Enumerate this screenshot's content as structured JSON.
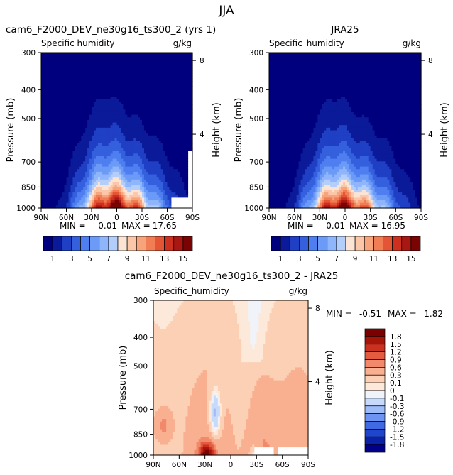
{
  "figure_title": "JJA",
  "colors": {
    "abs_scale": [
      "#00007f",
      "#0a1a99",
      "#1f3fc4",
      "#3560dd",
      "#4e7ef0",
      "#6b9af7",
      "#8fb5fb",
      "#b4cefc",
      "#fce4d4",
      "#fbc7a8",
      "#f7a37c",
      "#f17d55",
      "#e45535",
      "#ce3020",
      "#a81712",
      "#7a0404"
    ],
    "diff_scale": [
      "#00008b",
      "#0a22a6",
      "#1f45cc",
      "#3f6ae4",
      "#6d94f2",
      "#9dbcf8",
      "#c7daf9",
      "#f0f4fa",
      "#fde9da",
      "#fcd0b5",
      "#f8b090",
      "#f1896a",
      "#e45b3f",
      "#cc3020",
      "#a71508",
      "#7b0000"
    ]
  },
  "chart_data": [
    {
      "type": "contour",
      "title": "cam6_F2000_DEV_ne30g16_ts300_2 (yrs 1)",
      "variable": "Specific humidity",
      "units": "g/kg",
      "ylabel": "Pressure (mb)",
      "ylabel_right": "Height (km)",
      "x_ticks": [
        "90N",
        "60N",
        "30N",
        "0",
        "30S",
        "60S",
        "90S"
      ],
      "y_ticks": [
        "300",
        "400",
        "500",
        "700",
        "850",
        "1000"
      ],
      "y_ticks_right": [
        "8",
        "4"
      ],
      "ylim": [
        1000,
        300
      ],
      "x_range": [
        90,
        -90
      ],
      "stats": {
        "min_label": "MIN =",
        "min": "0.01",
        "max_label": "MAX =",
        "max": "17.65"
      },
      "peak": {
        "lat": 5,
        "value": 17.65
      },
      "colorbar_labels": [
        "1",
        "3",
        "5",
        "7",
        "9",
        "11",
        "13",
        "15"
      ]
    },
    {
      "type": "contour",
      "title": "JRA25",
      "variable": "Specific_humidity",
      "units": "g/kg",
      "ylabel": "Pressure (mb)",
      "ylabel_right": "Height (km)",
      "x_ticks": [
        "90N",
        "60N",
        "30N",
        "0",
        "30S",
        "60S",
        "90S"
      ],
      "y_ticks": [
        "300",
        "400",
        "500",
        "700",
        "850",
        "1000"
      ],
      "y_ticks_right": [
        "8",
        "4"
      ],
      "ylim": [
        1000,
        300
      ],
      "x_range": [
        90,
        -90
      ],
      "stats": {
        "min_label": "MIN =",
        "min": "0.01",
        "max_label": "MAX =",
        "max": "16.95"
      },
      "peak": {
        "lat": 5,
        "value": 16.95
      },
      "colorbar_labels": [
        "1",
        "3",
        "5",
        "7",
        "9",
        "11",
        "13",
        "15"
      ]
    },
    {
      "type": "contour",
      "title": "cam6_F2000_DEV_ne30g16_ts300_2 - JRA25",
      "variable": "Specific_humidity",
      "units": "g/kg",
      "ylabel": "Pressure (mb)",
      "ylabel_right": "Height (km)",
      "x_ticks": [
        "90N",
        "60N",
        "30N",
        "0",
        "30S",
        "60S",
        "90S"
      ],
      "y_ticks": [
        "300",
        "400",
        "500",
        "700",
        "850",
        "1000"
      ],
      "y_ticks_right": [
        "8",
        "4"
      ],
      "ylim": [
        1000,
        300
      ],
      "x_range": [
        90,
        -90
      ],
      "stats": {
        "min_label": "MIN =",
        "min": "-0.51",
        "max_label": "MAX =",
        "max": "1.82"
      },
      "colorbar_labels": [
        "1.8",
        "1.5",
        "1.2",
        "0.9",
        "0.6",
        "0.3",
        "0.1",
        "0",
        "-0.1",
        "-0.3",
        "-0.6",
        "-0.9",
        "-1.2",
        "-1.5",
        "-1.8"
      ]
    }
  ]
}
